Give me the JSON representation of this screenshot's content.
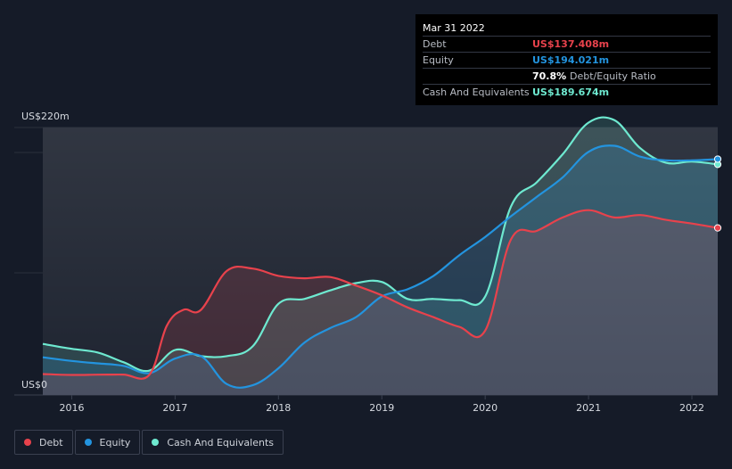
{
  "colors": {
    "debt": "#e8424c",
    "equity": "#2394df",
    "cash": "#6ee9d0",
    "background": "#151b28",
    "grid": "#2a303c"
  },
  "tooltip": {
    "date": "Mar 31 2022",
    "debt_label": "Debt",
    "debt_value": "US$137.408m",
    "equity_label": "Equity",
    "equity_value": "US$194.021m",
    "ratio_value": "70.8%",
    "ratio_label": "Debt/Equity Ratio",
    "cash_label": "Cash And Equivalents",
    "cash_value": "US$189.674m"
  },
  "legend": {
    "debt": "Debt",
    "equity": "Equity",
    "cash": "Cash And Equivalents"
  },
  "chart_data": {
    "type": "area",
    "title": "",
    "xlabel": "",
    "ylabel": "",
    "y_top_label": "US$220m",
    "y_bottom_label": "US$0",
    "xlim": [
      2015.72,
      2022.25
    ],
    "ylim": [
      0,
      220
    ],
    "grid": true,
    "x_ticks": [
      {
        "value": 2016,
        "label": "2016"
      },
      {
        "value": 2017,
        "label": "2017"
      },
      {
        "value": 2018,
        "label": "2018"
      },
      {
        "value": 2019,
        "label": "2019"
      },
      {
        "value": 2020,
        "label": "2020"
      },
      {
        "value": 2021,
        "label": "2021"
      },
      {
        "value": 2022,
        "label": "2022"
      }
    ],
    "series": [
      {
        "key": "debt",
        "name": "Debt",
        "points": [
          [
            2015.72,
            17.2
          ],
          [
            2016.0,
            16.5
          ],
          [
            2016.25,
            16.7
          ],
          [
            2016.5,
            16.8
          ],
          [
            2016.75,
            16.5
          ],
          [
            2016.92,
            57.0
          ],
          [
            2017.08,
            70.0
          ],
          [
            2017.25,
            70.0
          ],
          [
            2017.5,
            102.0
          ],
          [
            2017.75,
            104.0
          ],
          [
            2018.0,
            98.0
          ],
          [
            2018.25,
            96.0
          ],
          [
            2018.5,
            97.0
          ],
          [
            2018.75,
            90.0
          ],
          [
            2019.0,
            82.0
          ],
          [
            2019.25,
            72.0
          ],
          [
            2019.5,
            64.0
          ],
          [
            2019.75,
            56.0
          ],
          [
            2020.0,
            53.0
          ],
          [
            2020.25,
            128.0
          ],
          [
            2020.5,
            135.0
          ],
          [
            2020.75,
            146.0
          ],
          [
            2021.0,
            152.0
          ],
          [
            2021.25,
            146.0
          ],
          [
            2021.5,
            148.0
          ],
          [
            2021.75,
            144.0
          ],
          [
            2022.0,
            141.0
          ],
          [
            2022.25,
            137.408
          ]
        ]
      },
      {
        "key": "equity",
        "name": "Equity",
        "points": [
          [
            2015.72,
            31.0
          ],
          [
            2016.0,
            28.0
          ],
          [
            2016.25,
            26.0
          ],
          [
            2016.5,
            24.0
          ],
          [
            2016.75,
            18.0
          ],
          [
            2017.0,
            30.0
          ],
          [
            2017.25,
            32.0
          ],
          [
            2017.5,
            9.0
          ],
          [
            2017.75,
            8.0
          ],
          [
            2018.0,
            22.0
          ],
          [
            2018.25,
            43.0
          ],
          [
            2018.5,
            55.0
          ],
          [
            2018.75,
            64.0
          ],
          [
            2019.0,
            81.0
          ],
          [
            2019.25,
            87.0
          ],
          [
            2019.5,
            98.0
          ],
          [
            2019.75,
            115.0
          ],
          [
            2020.0,
            130.0
          ],
          [
            2020.25,
            147.0
          ],
          [
            2020.5,
            163.0
          ],
          [
            2020.75,
            179.0
          ],
          [
            2021.0,
            200.0
          ],
          [
            2021.25,
            205.0
          ],
          [
            2021.5,
            196.0
          ],
          [
            2021.75,
            193.0
          ],
          [
            2022.0,
            193.0
          ],
          [
            2022.25,
            194.021
          ]
        ]
      },
      {
        "key": "cash",
        "name": "Cash And Equivalents",
        "points": [
          [
            2015.72,
            42.0
          ],
          [
            2016.0,
            38.0
          ],
          [
            2016.25,
            35.0
          ],
          [
            2016.5,
            27.0
          ],
          [
            2016.75,
            20.0
          ],
          [
            2017.0,
            37.0
          ],
          [
            2017.25,
            32.0
          ],
          [
            2017.5,
            32.0
          ],
          [
            2017.75,
            40.0
          ],
          [
            2018.0,
            75.0
          ],
          [
            2018.25,
            79.0
          ],
          [
            2018.5,
            86.0
          ],
          [
            2018.75,
            92.0
          ],
          [
            2019.0,
            93.0
          ],
          [
            2019.25,
            79.0
          ],
          [
            2019.5,
            79.0
          ],
          [
            2019.75,
            78.0
          ],
          [
            2020.0,
            81.0
          ],
          [
            2020.25,
            155.0
          ],
          [
            2020.5,
            175.0
          ],
          [
            2020.75,
            198.0
          ],
          [
            2021.0,
            224.0
          ],
          [
            2021.25,
            226.0
          ],
          [
            2021.5,
            203.0
          ],
          [
            2021.75,
            191.0
          ],
          [
            2022.0,
            192.0
          ],
          [
            2022.25,
            189.674
          ]
        ]
      }
    ]
  }
}
